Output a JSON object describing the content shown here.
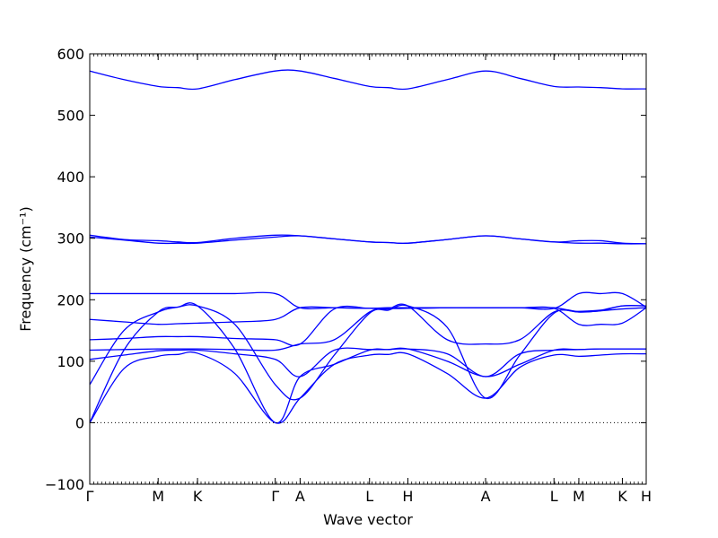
{
  "chart_data": {
    "type": "line",
    "xlabel": "Wave vector",
    "ylabel": "Frequency (cm⁻¹)",
    "ylim": [
      -100,
      600
    ],
    "xlim": [
      0,
      5.37
    ],
    "yticks": [
      -100,
      0,
      100,
      200,
      300,
      400,
      500,
      600
    ],
    "grid": false,
    "legend": "none",
    "line_color": "#0000ff",
    "zero_line": {
      "y": 0,
      "style": "dotted",
      "color": "#000000"
    },
    "kpoints": [
      {
        "label": "Γ",
        "x": 0.0
      },
      {
        "label": "M",
        "x": 0.66
      },
      {
        "label": "K",
        "x": 1.04
      },
      {
        "label": "Γ",
        "x": 1.79
      },
      {
        "label": "A",
        "x": 2.03
      },
      {
        "label": "L",
        "x": 2.7
      },
      {
        "label": "H",
        "x": 3.07
      },
      {
        "label": "A",
        "x": 3.82
      },
      {
        "label": "L",
        "x": 4.48
      },
      {
        "label": "M",
        "x": 4.72
      },
      {
        "label": "K",
        "x": 5.14
      },
      {
        "label": "H",
        "x": 5.37
      }
    ],
    "series": [
      {
        "x": [
          0,
          0.33,
          0.66,
          0.85,
          1.04,
          1.4,
          1.79,
          2.03,
          2.36,
          2.7,
          2.88,
          3.07,
          3.45,
          3.82,
          4.15,
          4.48,
          4.72,
          4.93,
          5.14,
          5.37
        ],
        "y": [
          0,
          118,
          180,
          188,
          190,
          120,
          0,
          75,
          95,
          118,
          119,
          120,
          100,
          75,
          95,
          118,
          119,
          120,
          120,
          120
        ]
      },
      {
        "x": [
          0,
          0.33,
          0.66,
          0.85,
          1.04,
          1.4,
          1.79,
          2.03,
          2.36,
          2.7,
          2.88,
          3.07,
          3.45,
          3.82,
          4.15,
          4.48,
          4.72,
          4.93,
          5.14,
          5.37
        ],
        "y": [
          0,
          88,
          108,
          111,
          113,
          80,
          0,
          40,
          95,
          110,
          111,
          112,
          80,
          40,
          90,
          110,
          108,
          110,
          112,
          112
        ]
      },
      {
        "x": [
          0,
          0.33,
          0.66,
          0.85,
          1.04,
          1.4,
          1.79,
          2.03,
          2.36,
          2.7,
          2.88,
          3.07,
          3.45,
          3.82,
          4.15,
          4.48,
          4.72,
          4.93,
          5.14,
          5.37
        ],
        "y": [
          62,
          150,
          180,
          188,
          190,
          160,
          62,
          40,
          110,
          178,
          183,
          190,
          155,
          40,
          110,
          178,
          181,
          183,
          190,
          190
        ]
      },
      {
        "x": [
          0,
          0.33,
          0.66,
          0.85,
          1.04,
          1.4,
          1.79,
          2.03,
          2.36,
          2.7,
          2.88,
          3.07,
          3.45,
          3.82,
          4.15,
          4.48,
          4.72,
          4.93,
          5.14,
          5.37
        ],
        "y": [
          103,
          110,
          117,
          118,
          118,
          112,
          103,
          75,
          118,
          119,
          119,
          120,
          112,
          75,
          112,
          118,
          119,
          120,
          120,
          120
        ]
      },
      {
        "x": [
          0,
          0.33,
          0.66,
          0.85,
          1.04,
          1.4,
          1.79,
          2.03,
          2.36,
          2.7,
          2.88,
          3.07,
          3.45,
          3.82,
          4.15,
          4.48,
          4.72,
          4.93,
          5.14,
          5.37
        ],
        "y": [
          118,
          119,
          120,
          120,
          120,
          119,
          118,
          128,
          135,
          180,
          185,
          190,
          135,
          128,
          135,
          180,
          180,
          182,
          190,
          190
        ]
      },
      {
        "x": [
          0,
          0.33,
          0.66,
          0.85,
          1.04,
          1.4,
          1.79,
          2.03,
          2.36,
          2.7,
          2.88,
          3.07,
          3.45,
          3.82,
          4.15,
          4.48,
          4.72,
          4.93,
          5.14,
          5.37
        ],
        "y": [
          135,
          137,
          140,
          140,
          140,
          137,
          135,
          128,
          185,
          186,
          187,
          187,
          187,
          187,
          187,
          187,
          180,
          182,
          185,
          187
        ]
      },
      {
        "x": [
          0,
          0.33,
          0.66,
          0.85,
          1.04,
          1.4,
          1.79,
          2.03,
          2.36,
          2.7,
          2.88,
          3.07,
          3.45,
          3.82,
          4.15,
          4.48,
          4.72,
          4.93,
          5.14,
          5.37
        ],
        "y": [
          168,
          164,
          160,
          161,
          162,
          164,
          168,
          187,
          187,
          186,
          186,
          186,
          187,
          187,
          187,
          186,
          160,
          160,
          162,
          187
        ]
      },
      {
        "x": [
          0,
          0.33,
          0.66,
          0.85,
          1.04,
          1.4,
          1.79,
          2.03,
          2.36,
          2.7,
          2.88,
          3.07,
          3.45,
          3.82,
          4.15,
          4.48,
          4.72,
          4.93,
          5.14,
          5.37
        ],
        "y": [
          210,
          210,
          210,
          210,
          210,
          210,
          210,
          187,
          187,
          186,
          186,
          186,
          187,
          187,
          187,
          186,
          210,
          210,
          210,
          188
        ]
      },
      {
        "x": [
          0,
          0.33,
          0.66,
          0.85,
          1.04,
          1.4,
          1.79,
          2.03,
          2.36,
          2.7,
          2.88,
          3.07,
          3.45,
          3.82,
          4.15,
          4.48,
          4.72,
          4.93,
          5.14,
          5.37
        ],
        "y": [
          302,
          297,
          292,
          292,
          292,
          297,
          302,
          304,
          299,
          294,
          293,
          292,
          298,
          304,
          299,
          294,
          292,
          292,
          291,
          291
        ]
      },
      {
        "x": [
          0,
          0.33,
          0.66,
          0.85,
          1.04,
          1.4,
          1.79,
          2.03,
          2.36,
          2.7,
          2.88,
          3.07,
          3.45,
          3.82,
          4.15,
          4.48,
          4.72,
          4.93,
          5.14,
          5.37
        ],
        "y": [
          305,
          298,
          296,
          294,
          293,
          300,
          305,
          304,
          299,
          294,
          293,
          292,
          298,
          304,
          299,
          294,
          296,
          296,
          292,
          291
        ]
      },
      {
        "x": [
          0,
          0.33,
          0.66,
          0.85,
          1.04,
          1.4,
          1.79,
          2.03,
          2.36,
          2.7,
          2.88,
          3.07,
          3.45,
          3.82,
          4.15,
          4.48,
          4.72,
          4.93,
          5.14,
          5.37
        ],
        "y": [
          572,
          558,
          547,
          545,
          543,
          558,
          572,
          572,
          560,
          547,
          545,
          543,
          558,
          572,
          560,
          547,
          546,
          545,
          543,
          543
        ]
      }
    ]
  }
}
